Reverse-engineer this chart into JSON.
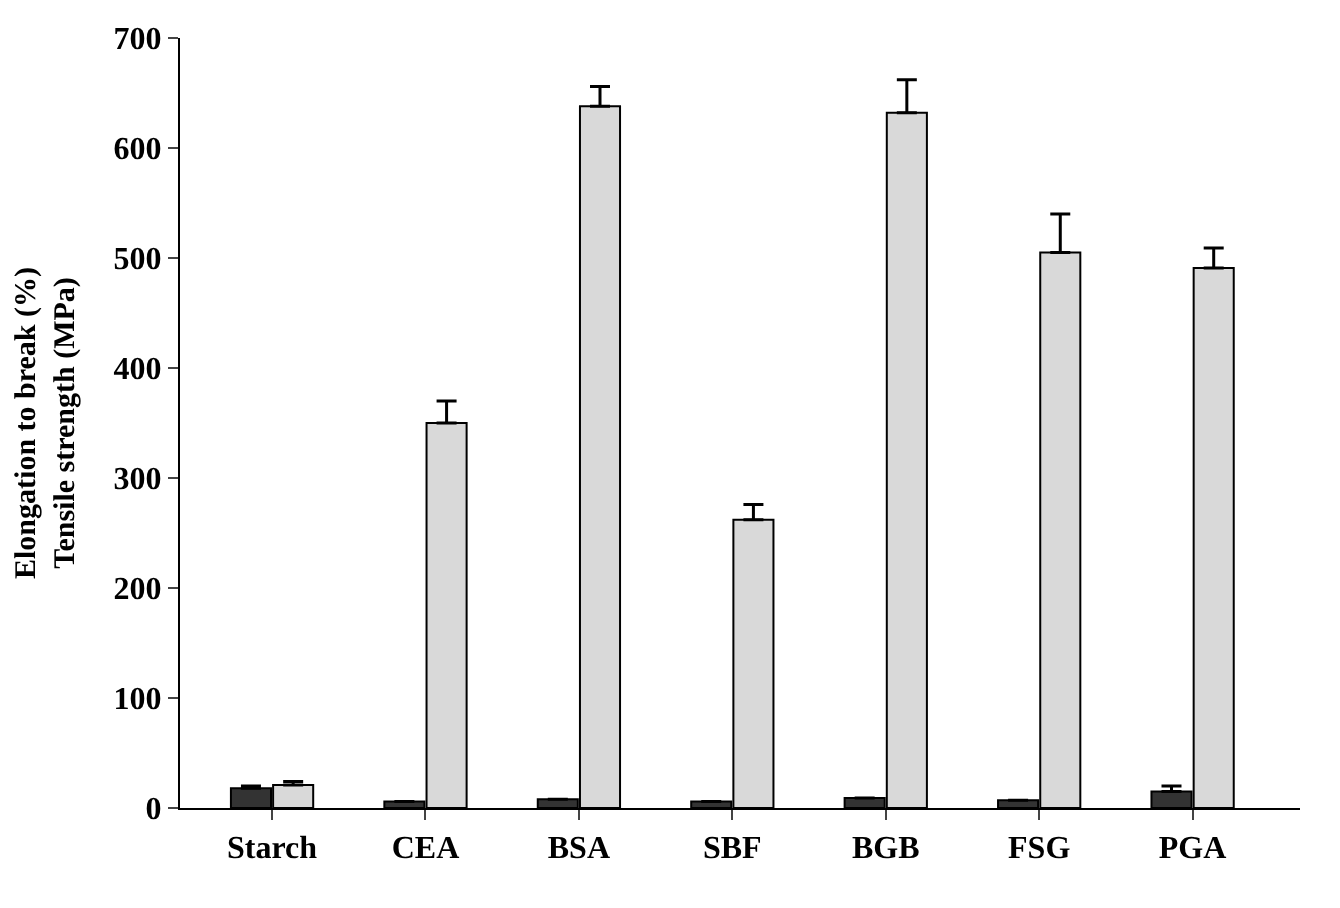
{
  "chart_data": {
    "type": "bar",
    "ylabel": "Elongation to break (%)\nTensile strength (MPa)",
    "categories": [
      "Starch",
      "CEA",
      "BSA",
      "SBF",
      "BGB",
      "FSG",
      "PGA"
    ],
    "series": [
      {
        "color": "#333333",
        "values": [
          18,
          6,
          8,
          6,
          9,
          7,
          15
        ],
        "errors": [
          2,
          null,
          null,
          null,
          null,
          null,
          5
        ]
      },
      {
        "color": "#d9d9d9",
        "values": [
          21,
          350,
          638,
          262,
          632,
          505,
          491
        ],
        "errors": [
          3,
          20,
          18,
          14,
          30,
          35,
          18
        ]
      }
    ],
    "ylim": [
      0,
      700
    ],
    "yticks": [
      0,
      100,
      200,
      300,
      400,
      500,
      600,
      700
    ],
    "legend": false
  }
}
